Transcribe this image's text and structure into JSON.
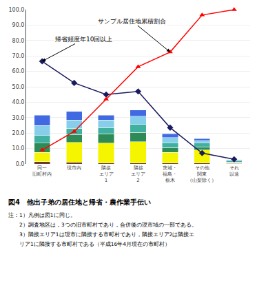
{
  "chart_data": {
    "type": "bar",
    "stacked": true,
    "title": "図4　他出子弟の居住地と帰省・農作業手伝い",
    "notes": [
      "注：1）凡例は図1に同じ。",
      "　　2）調査地区は，3つの旧市町村であり，合併後の現市域の一部である。",
      "　　3）隣接エリア1は現市に隣接する市町村であり，隣接エリア2は隣接エ",
      "　　リア1に隣接する市町村である（平成16年4月現在の市町村）"
    ],
    "categories": [
      "同一\n旧町村内",
      "現市内",
      "隣接\nエリア\n1",
      "隣接\nエリア\n2",
      "茨城・\n福島・\n栃木",
      "その他\n関東\n（山梨除く）",
      "それ\n以遠"
    ],
    "series": [
      {
        "color": "#6B3A2A",
        "values": [
          1.5,
          1.0,
          0.5,
          0.5,
          0.5,
          0.5,
          0.3
        ]
      },
      {
        "color": "#F5F500",
        "values": [
          6.0,
          13.0,
          13.0,
          14.0,
          7.0,
          8.5,
          0.5
        ]
      },
      {
        "color": "#2E8B57",
        "values": [
          6.0,
          5.0,
          6.0,
          6.0,
          3.0,
          2.0,
          0.5
        ]
      },
      {
        "color": "#40B0A0",
        "values": [
          5.0,
          4.0,
          4.0,
          5.0,
          3.0,
          2.5,
          0.5
        ]
      },
      {
        "color": "#87CEEB",
        "values": [
          6.5,
          5.5,
          5.0,
          5.5,
          3.5,
          1.5,
          0.5
        ]
      },
      {
        "color": "#4169E1",
        "values": [
          6.5,
          5.5,
          3.0,
          4.0,
          2.5,
          1.5,
          0.5
        ]
      },
      {
        "type": "line",
        "color": "#1a1a5e",
        "marker": "diamond",
        "annotation": "帰省頻度年10回以上",
        "values": [
          66.5,
          52.5,
          45.0,
          47.0,
          23.5,
          7.0,
          3.0
        ]
      },
      {
        "type": "line",
        "color": "red",
        "marker": "triangle-up",
        "annotation": "サンプル居住地累積割合",
        "values": [
          9.0,
          21.0,
          42.0,
          63.0,
          72.5,
          96.5,
          100.0
        ]
      }
    ],
    "ylim": [
      0.0,
      100.0
    ],
    "yticks": [
      {
        "value": 0,
        "label": "0.0"
      },
      {
        "value": 10,
        "label": "10.0"
      },
      {
        "value": 20,
        "label": "20.0"
      },
      {
        "value": 30,
        "label": "30.0"
      },
      {
        "value": 40,
        "label": "40.0"
      },
      {
        "value": 50,
        "label": "50.0"
      },
      {
        "value": 60,
        "label": "60.0"
      },
      {
        "value": 70,
        "label": "70.0"
      },
      {
        "value": 80,
        "label": "80.0"
      },
      {
        "value": 90,
        "label": "90.0"
      },
      {
        "value": 100,
        "label": "100.0"
      }
    ],
    "grid": true
  }
}
